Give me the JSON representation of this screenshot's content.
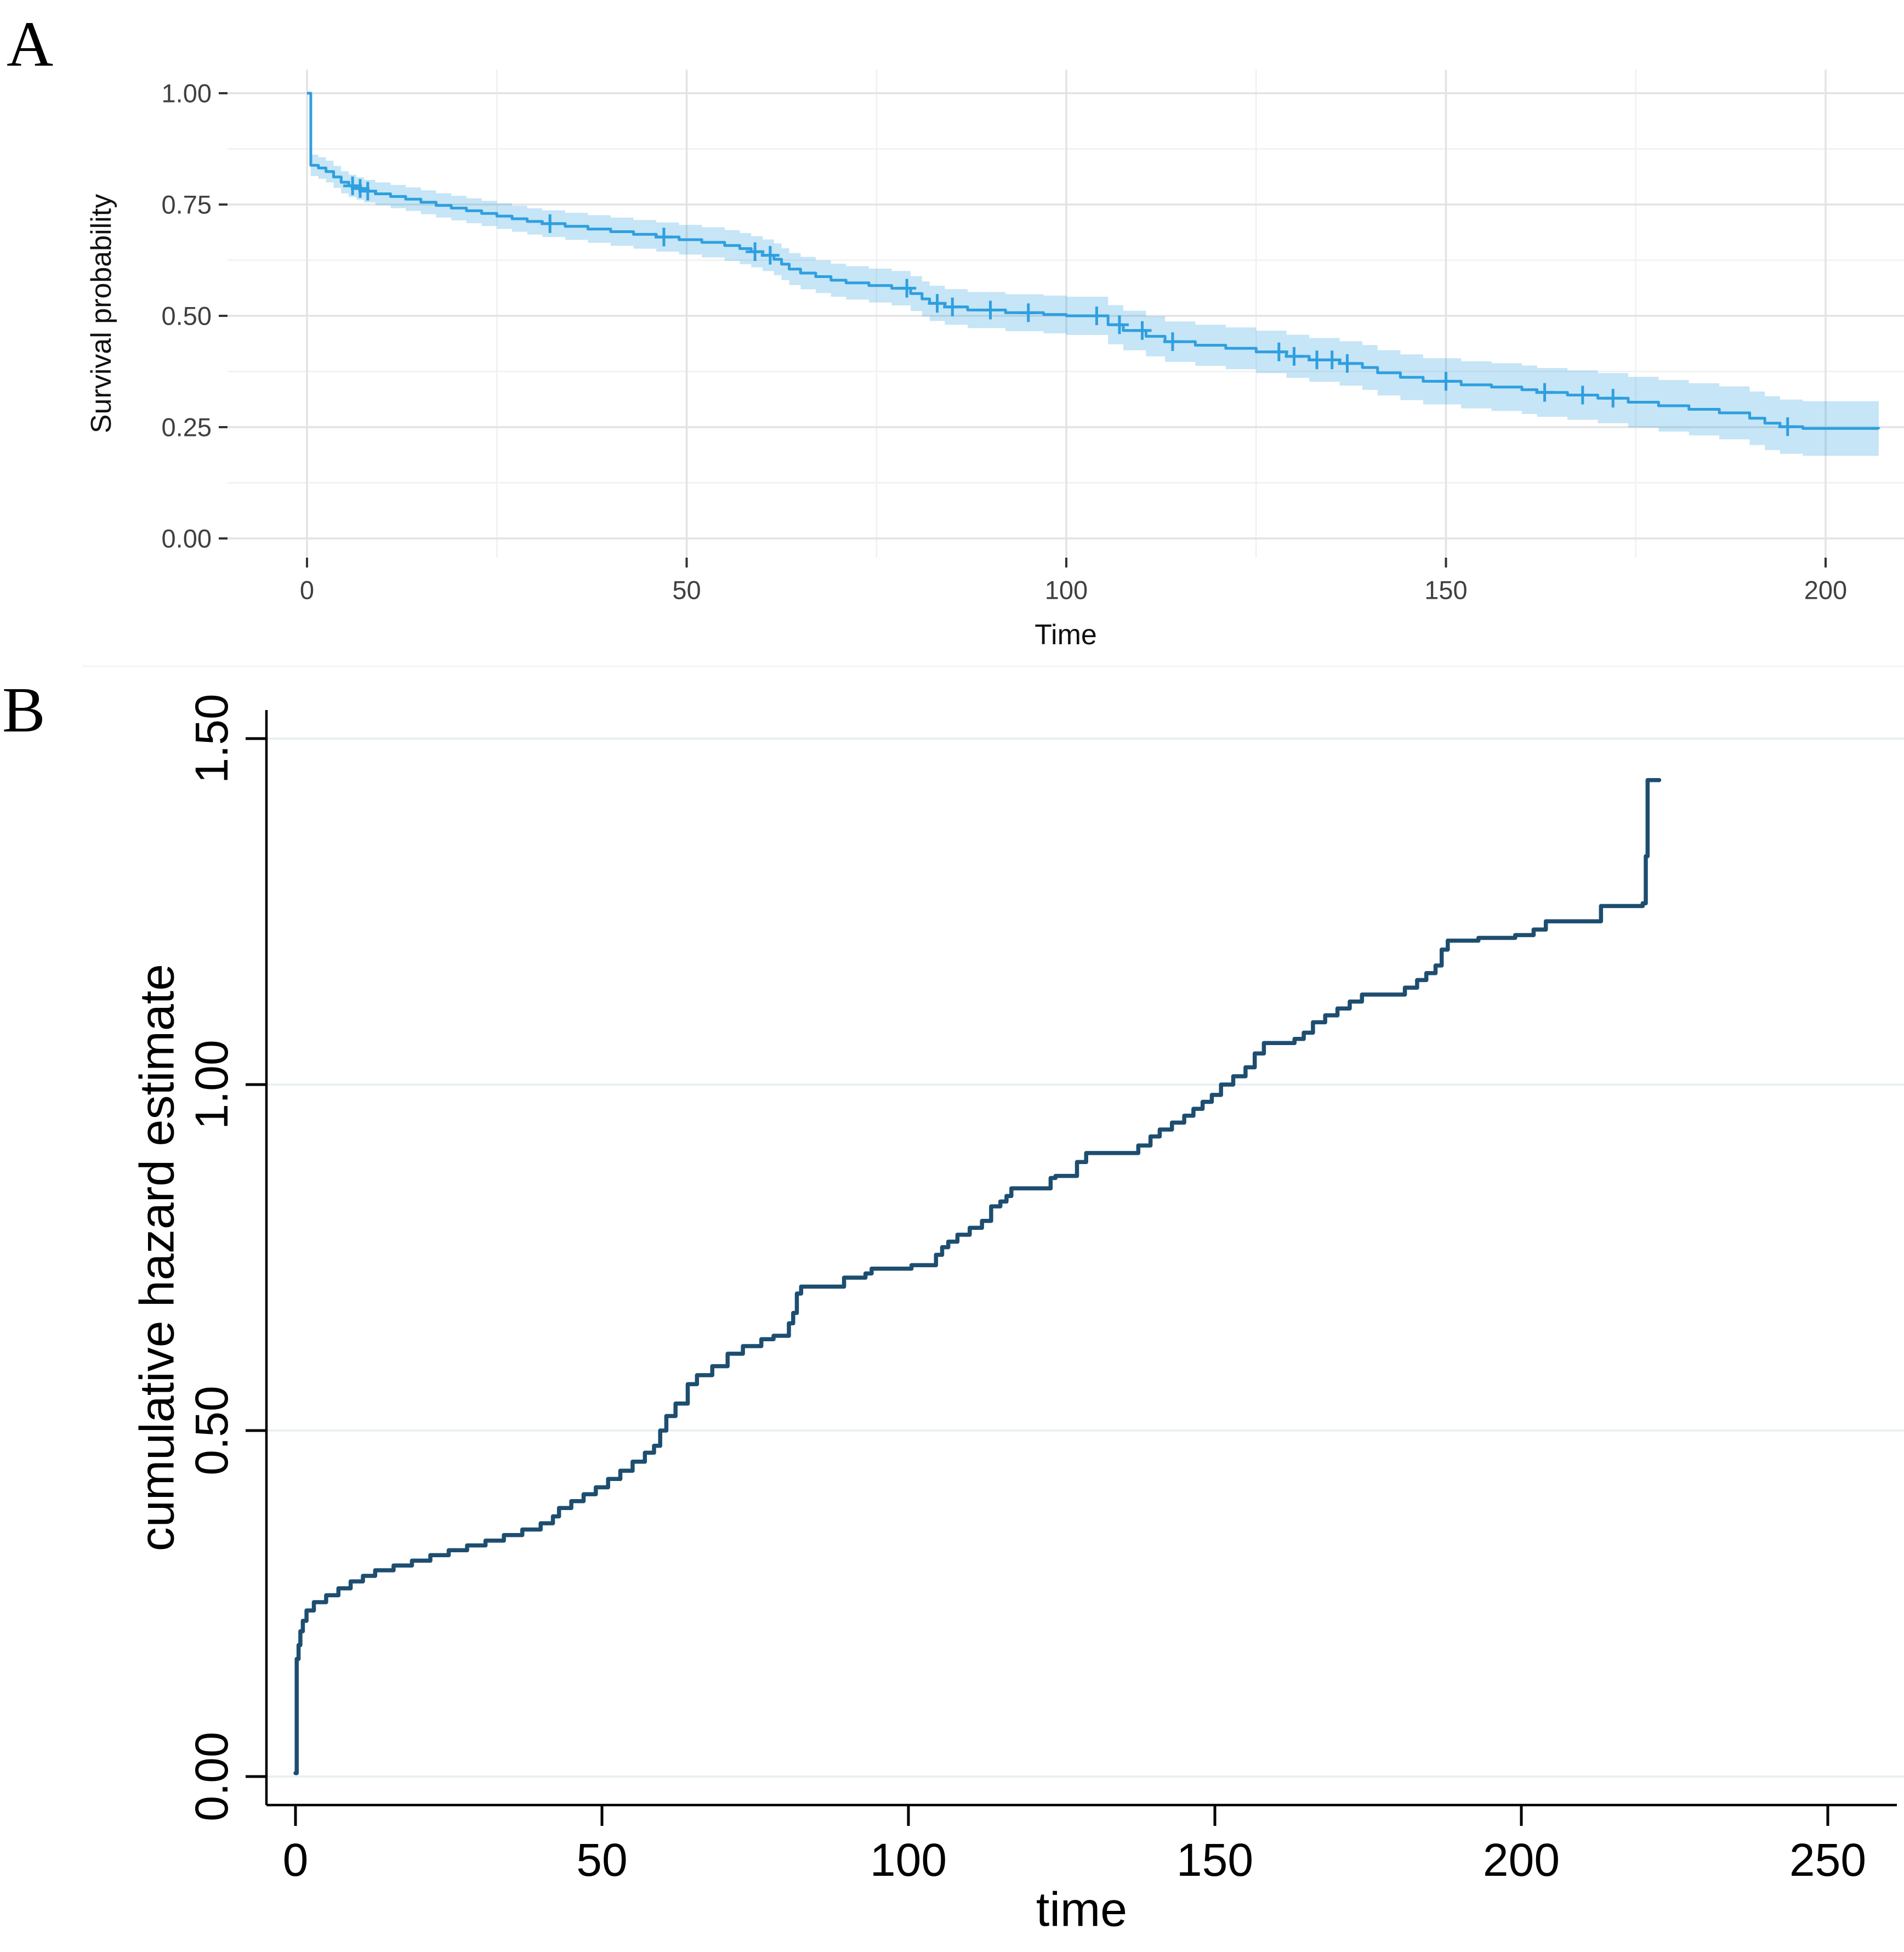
{
  "figure": {
    "background": "#ffffff",
    "panels": [
      {
        "label": "A"
      },
      {
        "label": "B"
      }
    ]
  },
  "chart_data": [
    {
      "type": "line",
      "subtype": "kaplan-meier-step",
      "panel": "A",
      "title": "",
      "xlabel": "Time",
      "ylabel": "Survival probability",
      "xlim": [
        -10.5,
        210
      ],
      "ylim": [
        -0.043,
        1.053
      ],
      "xticks": [
        0,
        50,
        100,
        150,
        200
      ],
      "yticks": [
        1.0,
        0.75,
        0.5,
        0.25,
        0.0
      ],
      "ytick_labels": [
        "1.00",
        "0.75",
        "0.50",
        "0.25",
        "0.00"
      ],
      "grid": "major+minor",
      "legend": "none",
      "line_color": "#2E9FDF",
      "ribbon_color": "rgba(46,159,223,0.27)",
      "tick_text_color": "#404040",
      "axis_title_color": "#111111",
      "grid_major_color": "#e3e3e3",
      "grid_minor_color": "#f0f0f0",
      "series": [
        {
          "name": "survival",
          "end_time": 207,
          "points": [
            [
              0,
              1.0
            ],
            [
              0.5,
              0.838
            ],
            [
              1.5,
              0.832
            ],
            [
              2.5,
              0.824
            ],
            [
              3.5,
              0.812
            ],
            [
              4.5,
              0.8
            ],
            [
              5.5,
              0.792
            ],
            [
              6.5,
              0.786
            ],
            [
              7.5,
              0.78
            ],
            [
              9,
              0.774
            ],
            [
              11,
              0.768
            ],
            [
              13,
              0.762
            ],
            [
              15,
              0.755
            ],
            [
              17,
              0.748
            ],
            [
              19,
              0.742
            ],
            [
              21,
              0.736
            ],
            [
              23,
              0.73
            ],
            [
              25,
              0.724
            ],
            [
              27,
              0.718
            ],
            [
              29,
              0.712
            ],
            [
              31,
              0.707
            ],
            [
              34,
              0.701
            ],
            [
              37,
              0.695
            ],
            [
              40,
              0.689
            ],
            [
              43,
              0.683
            ],
            [
              46,
              0.677
            ],
            [
              49,
              0.671
            ],
            [
              52,
              0.665
            ],
            [
              55,
              0.658
            ],
            [
              57,
              0.651
            ],
            [
              58.5,
              0.644
            ],
            [
              60,
              0.636
            ],
            [
              61.5,
              0.627
            ],
            [
              62.5,
              0.616
            ],
            [
              63.5,
              0.605
            ],
            [
              65,
              0.596
            ],
            [
              67,
              0.588
            ],
            [
              69,
              0.58
            ],
            [
              71,
              0.574
            ],
            [
              74,
              0.568
            ],
            [
              77,
              0.562
            ],
            [
              79.5,
              0.55
            ],
            [
              81,
              0.538
            ],
            [
              82,
              0.528
            ],
            [
              84,
              0.52
            ],
            [
              87,
              0.513
            ],
            [
              92,
              0.507
            ],
            [
              97,
              0.503
            ],
            [
              100,
              0.5
            ],
            [
              105.5,
              0.48
            ],
            [
              107.5,
              0.467
            ],
            [
              110.5,
              0.454
            ],
            [
              113,
              0.442
            ],
            [
              117,
              0.434
            ],
            [
              121,
              0.427
            ],
            [
              125,
              0.419
            ],
            [
              129,
              0.409
            ],
            [
              132,
              0.401
            ],
            [
              136,
              0.393
            ],
            [
              139,
              0.384
            ],
            [
              141,
              0.372
            ],
            [
              144,
              0.362
            ],
            [
              147,
              0.353
            ],
            [
              152,
              0.345
            ],
            [
              156,
              0.34
            ],
            [
              160,
              0.334
            ],
            [
              162,
              0.328
            ],
            [
              166,
              0.322
            ],
            [
              170,
              0.315
            ],
            [
              174,
              0.306
            ],
            [
              178,
              0.298
            ],
            [
              182,
              0.29
            ],
            [
              186,
              0.282
            ],
            [
              190,
              0.27
            ],
            [
              192,
              0.259
            ],
            [
              194,
              0.251
            ],
            [
              197,
              0.247
            ],
            [
              207,
              0.246
            ]
          ]
        }
      ],
      "censor_marks": [
        [
          6,
          0.792
        ],
        [
          7,
          0.786
        ],
        [
          8,
          0.78
        ],
        [
          32,
          0.707
        ],
        [
          47,
          0.677
        ],
        [
          59,
          0.644
        ],
        [
          61,
          0.636
        ],
        [
          79,
          0.562
        ],
        [
          83,
          0.528
        ],
        [
          85,
          0.52
        ],
        [
          90,
          0.513
        ],
        [
          95,
          0.507
        ],
        [
          104,
          0.5
        ],
        [
          107,
          0.48
        ],
        [
          110,
          0.467
        ],
        [
          114,
          0.442
        ],
        [
          128,
          0.419
        ],
        [
          130,
          0.409
        ],
        [
          133,
          0.401
        ],
        [
          135,
          0.401
        ],
        [
          137,
          0.393
        ],
        [
          150,
          0.353
        ],
        [
          163,
          0.328
        ],
        [
          168,
          0.322
        ],
        [
          172,
          0.315
        ],
        [
          195,
          0.251
        ]
      ],
      "ci_band": {
        "halfwidth_base": 0.024,
        "halfwidth_slope": 0.00019,
        "note": "95% CI ribbon half-width grows with time"
      }
    },
    {
      "type": "line",
      "subtype": "nelson-aalen-step",
      "panel": "B",
      "title": "",
      "xlabel": "time",
      "ylabel": "cumulative hazard estimate",
      "xlim": [
        -4.7,
        261
      ],
      "ylim": [
        -0.041,
        1.54
      ],
      "xticks": [
        0,
        50,
        100,
        150,
        200,
        250
      ],
      "yticks": [
        0.0,
        0.5,
        1.0,
        1.5
      ],
      "ytick_labels": [
        "0.00",
        "0.50",
        "1.00",
        "1.50"
      ],
      "grid": "horizontal-major",
      "legend": "none",
      "line_color": "#1d4e70",
      "axis_color": "#000000",
      "grid_color": "#e6efee",
      "tick_text_color": "#000000",
      "series": [
        {
          "name": "cumulative hazard",
          "points": [
            [
              0,
              0.005
            ],
            [
              0.2,
              0.17
            ],
            [
              0.5,
              0.19
            ],
            [
              0.8,
              0.21
            ],
            [
              1.2,
              0.225
            ],
            [
              1.8,
              0.24
            ],
            [
              3,
              0.252
            ],
            [
              5,
              0.262
            ],
            [
              7,
              0.272
            ],
            [
              9,
              0.282
            ],
            [
              11,
              0.29
            ],
            [
              13,
              0.298
            ],
            [
              16,
              0.305
            ],
            [
              19,
              0.312
            ],
            [
              22,
              0.32
            ],
            [
              25,
              0.327
            ],
            [
              28,
              0.334
            ],
            [
              31,
              0.341
            ],
            [
              34,
              0.349
            ],
            [
              37,
              0.357
            ],
            [
              40,
              0.366
            ],
            [
              42,
              0.376
            ],
            [
              43,
              0.388
            ],
            [
              45,
              0.398
            ],
            [
              47,
              0.408
            ],
            [
              49,
              0.418
            ],
            [
              51,
              0.43
            ],
            [
              53,
              0.442
            ],
            [
              55,
              0.455
            ],
            [
              57,
              0.468
            ],
            [
              58.5,
              0.478
            ],
            [
              59.5,
              0.5
            ],
            [
              60.5,
              0.521
            ],
            [
              62,
              0.539
            ],
            [
              64,
              0.567
            ],
            [
              65.5,
              0.58
            ],
            [
              68,
              0.593
            ],
            [
              70.5,
              0.611
            ],
            [
              73,
              0.622
            ],
            [
              76,
              0.632
            ],
            [
              78,
              0.637
            ],
            [
              80.5,
              0.655
            ],
            [
              81.2,
              0.67
            ],
            [
              81.8,
              0.698
            ],
            [
              82.5,
              0.708
            ],
            [
              89.5,
              0.721
            ],
            [
              93,
              0.727
            ],
            [
              94,
              0.734
            ],
            [
              100.5,
              0.739
            ],
            [
              104.5,
              0.754
            ],
            [
              105.5,
              0.765
            ],
            [
              106.5,
              0.773
            ],
            [
              108,
              0.783
            ],
            [
              110,
              0.793
            ],
            [
              112,
              0.803
            ],
            [
              113.5,
              0.824
            ],
            [
              115,
              0.831
            ],
            [
              116,
              0.839
            ],
            [
              116.8,
              0.85
            ],
            [
              123.2,
              0.865
            ],
            [
              124,
              0.868
            ],
            [
              127.5,
              0.888
            ],
            [
              129,
              0.901
            ],
            [
              137.5,
              0.912
            ],
            [
              139.5,
              0.925
            ],
            [
              141,
              0.935
            ],
            [
              143,
              0.945
            ],
            [
              145,
              0.955
            ],
            [
              146.5,
              0.965
            ],
            [
              148,
              0.975
            ],
            [
              149.5,
              0.985
            ],
            [
              151,
              1.0
            ],
            [
              153,
              1.012
            ],
            [
              155,
              1.025
            ],
            [
              156.5,
              1.045
            ],
            [
              158,
              1.06
            ],
            [
              163,
              1.066
            ],
            [
              164.5,
              1.075
            ],
            [
              166,
              1.09
            ],
            [
              168,
              1.1
            ],
            [
              170,
              1.11
            ],
            [
              172,
              1.12
            ],
            [
              174,
              1.13
            ],
            [
              181,
              1.14
            ],
            [
              183,
              1.151
            ],
            [
              184.5,
              1.161
            ],
            [
              186,
              1.172
            ],
            [
              187,
              1.195
            ],
            [
              188,
              1.208
            ],
            [
              193,
              1.212
            ],
            [
              199,
              1.216
            ],
            [
              202,
              1.224
            ],
            [
              204,
              1.236
            ],
            [
              213,
              1.258
            ],
            [
              219.8,
              1.262
            ],
            [
              220.3,
              1.33
            ],
            [
              220.6,
              1.44
            ],
            [
              222.5,
              1.44
            ]
          ]
        }
      ]
    }
  ]
}
